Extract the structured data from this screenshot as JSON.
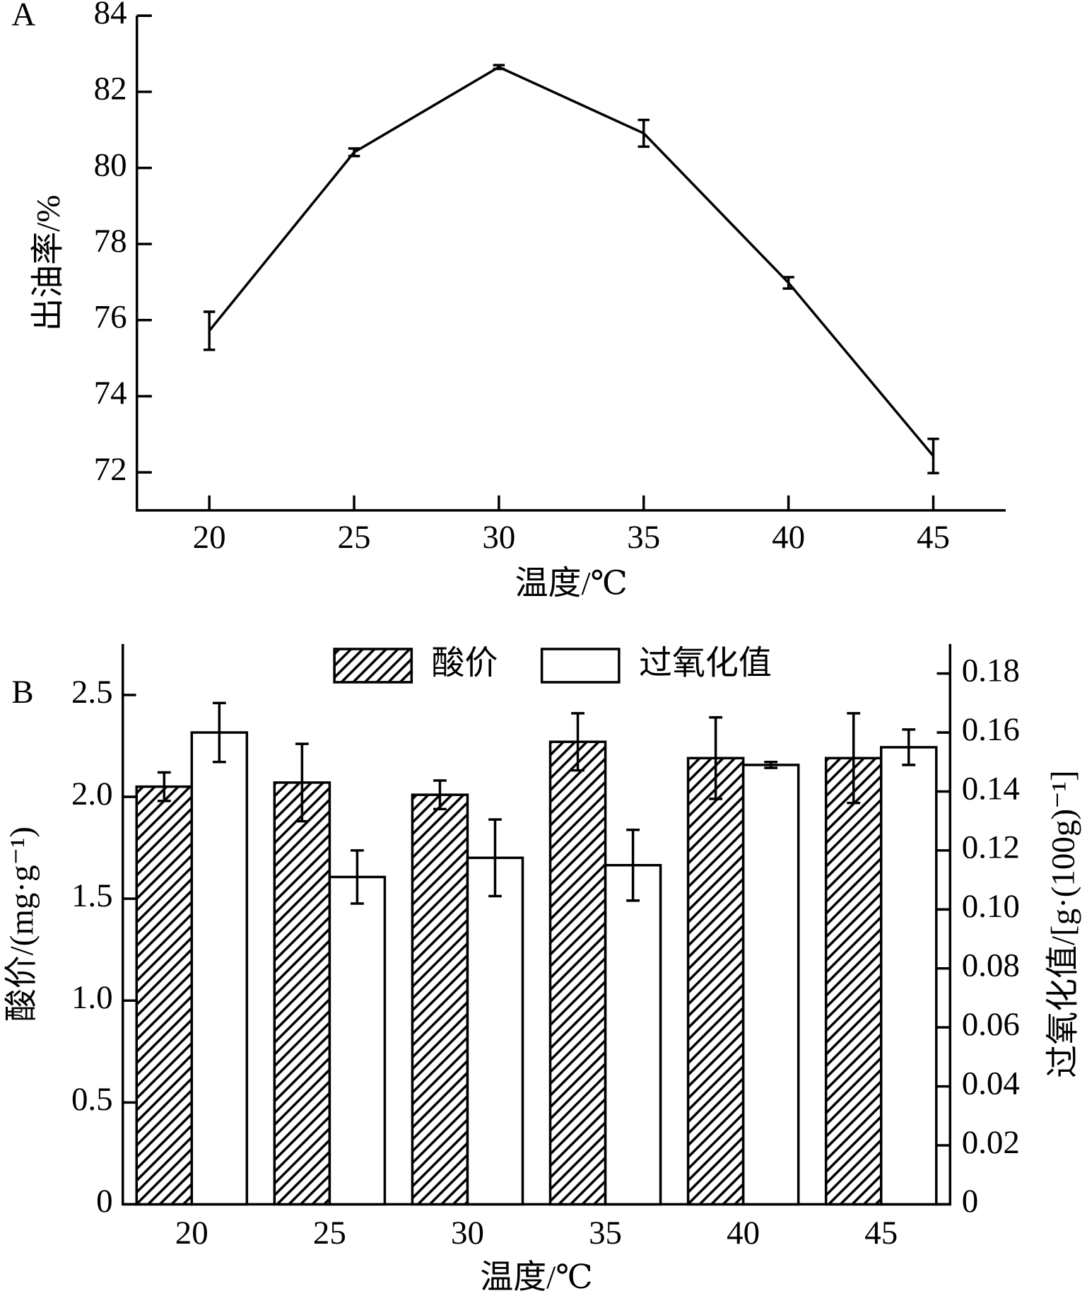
{
  "chart_data": [
    {
      "type": "line",
      "panel_label": "A",
      "xlabel": "温度/℃",
      "ylabel": "出油率/%",
      "x": [
        20,
        25,
        30,
        35,
        40,
        45
      ],
      "values": [
        75.72,
        80.41,
        82.65,
        80.91,
        76.98,
        72.43
      ],
      "errors": [
        0.5,
        0.1,
        0.05,
        0.35,
        0.15,
        0.45
      ],
      "color": "#000000",
      "xlim": [
        17.5,
        47.5
      ],
      "xticks": [
        20,
        25,
        30,
        35,
        40,
        45
      ],
      "ylim": [
        71,
        84
      ],
      "yticks": [
        72,
        74,
        76,
        78,
        80,
        82,
        84
      ]
    },
    {
      "type": "bar",
      "panel_label": "B",
      "xlabel": "温度/℃",
      "ylabel": "酸价/(mg·g⁻¹)",
      "y2label": "过氧化值/[g·(100g)⁻¹]",
      "categories": [
        "20",
        "25",
        "30",
        "35",
        "40",
        "45"
      ],
      "legend": "top",
      "series": [
        {
          "name": "酸价",
          "color": "#000000",
          "pattern": "hatch",
          "values": [
            2.05,
            2.07,
            2.01,
            2.27,
            2.19,
            2.19
          ],
          "errors": [
            0.07,
            0.19,
            0.07,
            0.14,
            0.2,
            0.22
          ]
        },
        {
          "name": "过氧化值",
          "color": "#ffffff",
          "axis": "y2",
          "values": [
            0.16,
            0.111,
            0.1175,
            0.115,
            0.149,
            0.155
          ],
          "errors": [
            0.01,
            0.009,
            0.013,
            0.012,
            0.001,
            0.006
          ]
        }
      ],
      "ylim": [
        0,
        2.75
      ],
      "yticks": [
        0,
        0.5,
        {
          "value": 1,
          "label": "1.0"
        },
        1.5,
        {
          "value": 2,
          "label": "2.0"
        },
        2.5
      ],
      "y2lim": [
        0,
        0.19
      ],
      "y2ticks": [
        0,
        0.02,
        0.04,
        0.06,
        0.08,
        {
          "value": 0.1,
          "label": "0.10"
        },
        0.12,
        0.14,
        0.16,
        0.18
      ]
    }
  ]
}
